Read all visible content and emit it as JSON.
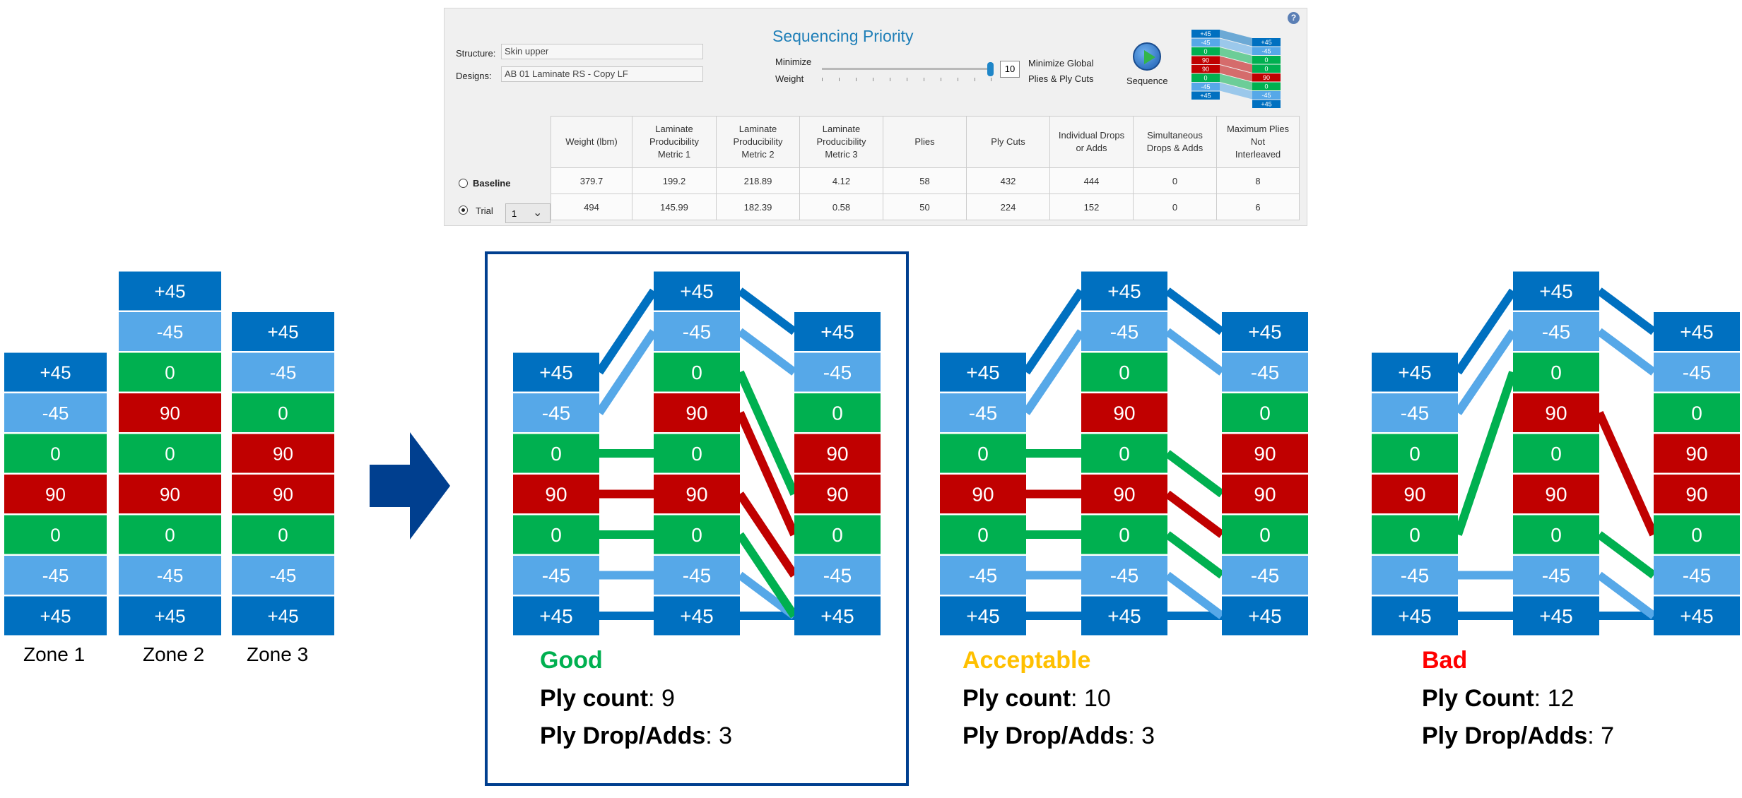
{
  "panel": {
    "structure_label": "Structure:",
    "structure_value": "Skin upper",
    "designs_label": "Designs:",
    "designs_value": "AB 01 Laminate RS - Copy LF",
    "title": "Sequencing Priority",
    "minimize_weight": [
      "Minimize",
      "Weight"
    ],
    "minimize_global": [
      "Minimize Global",
      "Plies & Ply Cuts"
    ],
    "slider_value": "10",
    "slider_level": 1.0,
    "sequence_label": "Sequence",
    "help_label": "?",
    "columns": [
      [
        "Weight (lbm)"
      ],
      [
        "Laminate",
        "Producibility",
        "Metric 1"
      ],
      [
        "Laminate",
        "Producibility",
        "Metric 2"
      ],
      [
        "Laminate",
        "Producibility",
        "Metric 3"
      ],
      [
        "Plies"
      ],
      [
        "Ply Cuts"
      ],
      [
        "Individual Drops",
        "or Adds"
      ],
      [
        "Simultaneous",
        "Drops & Adds"
      ],
      [
        "Maximum Plies",
        "Not",
        "Interleaved"
      ]
    ],
    "baseline_label": "Baseline",
    "trial_label": "Trial",
    "trial_number": "1",
    "rows": [
      [
        "379.7",
        "199.2",
        "218.89",
        "4.12",
        "58",
        "432",
        "444",
        "0",
        "8"
      ],
      [
        "494",
        "145.99",
        "182.39",
        "0.58",
        "50",
        "224",
        "152",
        "0",
        "6"
      ]
    ],
    "thumb_left": [
      "+45",
      "-45",
      "0",
      "90",
      "90",
      "0",
      "-45",
      "+45"
    ],
    "thumb_right": [
      "+45",
      "-45",
      "0",
      "0",
      "90",
      "0",
      "-45",
      "+45"
    ]
  },
  "colors": {
    "p45": "#0070c0",
    "m45": "#56a8e8",
    "zero": "#00b050",
    "ninety": "#c00000",
    "arrow": "#003f8f",
    "good": "#00b050",
    "acceptable": "#ffc000",
    "bad": "#ff0000"
  },
  "zones": {
    "zone1": [
      "+45",
      "-45",
      "0",
      "90",
      "0",
      "-45",
      "+45"
    ],
    "zone2": [
      "+45",
      "-45",
      "0",
      "90",
      "0",
      "90",
      "0",
      "-45",
      "+45"
    ],
    "zone3": [
      "+45",
      "-45",
      "0",
      "90",
      "90",
      "0",
      "-45",
      "+45"
    ],
    "captions": [
      "Zone 1",
      "Zone 2",
      "Zone 3"
    ]
  },
  "examples": [
    {
      "left": [
        "+45",
        "-45",
        "0",
        "90",
        "0",
        "-45",
        "+45"
      ],
      "middle": [
        "+45",
        "-45",
        "0",
        "90",
        "0",
        "90",
        "0",
        "-45",
        "+45"
      ],
      "right": [
        "+45",
        "-45",
        "0",
        "90",
        "90",
        "0",
        "-45",
        "+45"
      ],
      "rating": "Good",
      "ply_count_label": "Ply count",
      "ply_count": "9",
      "drop_label": "Ply Drop/Adds",
      "drop_count": "3"
    },
    {
      "left": [
        "+45",
        "-45",
        "0",
        "90",
        "0",
        "-45",
        "+45"
      ],
      "middle": [
        "+45",
        "-45",
        "0",
        "90",
        "0",
        "90",
        "0",
        "-45",
        "+45"
      ],
      "right": [
        "+45",
        "-45",
        "0",
        "90",
        "90",
        "0",
        "-45",
        "+45"
      ],
      "rating": "Acceptable",
      "ply_count_label": "Ply count",
      "ply_count": "10",
      "drop_label": "Ply Drop/Adds",
      "drop_count": "3"
    },
    {
      "left": [
        "+45",
        "-45",
        "0",
        "90",
        "0",
        "-45",
        "+45"
      ],
      "middle": [
        "+45",
        "-45",
        "0",
        "90",
        "0",
        "90",
        "0",
        "-45",
        "+45"
      ],
      "right": [
        "+45",
        "-45",
        "0",
        "90",
        "90",
        "0",
        "-45",
        "+45"
      ],
      "rating": "Bad",
      "ply_count_label": "Ply Count",
      "ply_count": "12",
      "drop_label": "Ply Drop/Adds",
      "drop_count": "7"
    }
  ]
}
